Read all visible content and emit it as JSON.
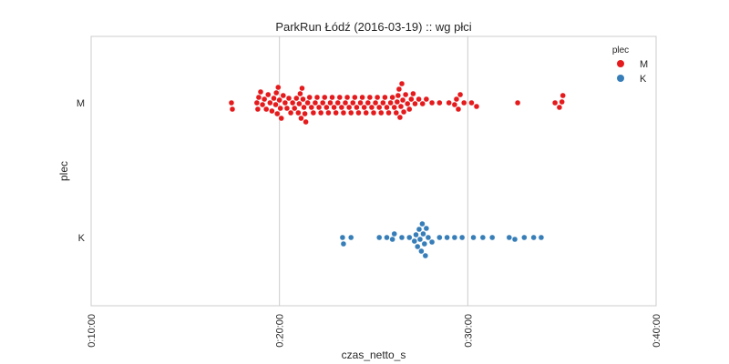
{
  "chart_data": {
    "type": "scatter",
    "subtype": "swarm",
    "title": "ParkRun Łódź (2016-03-19) :: wg płci",
    "xlabel": "czas_netto_s",
    "ylabel": "plec",
    "x_unit": "seconds",
    "xlim": [
      600,
      2400
    ],
    "x_ticks": [
      600,
      1200,
      1800,
      2400
    ],
    "x_tick_labels": [
      "0:10:00",
      "0:20:00",
      "0:30:00",
      "0:40:00"
    ],
    "categories": [
      "M",
      "K"
    ],
    "grid": true,
    "legend": {
      "title": "plec",
      "position": "top-right"
    },
    "series": [
      {
        "name": "M",
        "color": "#e41a1c",
        "values": [
          1047,
          1050,
          1128,
          1131,
          1134,
          1140,
          1146,
          1152,
          1158,
          1164,
          1170,
          1176,
          1182,
          1188,
          1190,
          1193,
          1196,
          1200,
          1203,
          1206,
          1212,
          1218,
          1224,
          1230,
          1236,
          1242,
          1248,
          1254,
          1260,
          1263,
          1266,
          1269,
          1272,
          1275,
          1278,
          1281,
          1284,
          1290,
          1296,
          1302,
          1308,
          1314,
          1320,
          1326,
          1332,
          1338,
          1344,
          1350,
          1356,
          1362,
          1368,
          1374,
          1380,
          1386,
          1392,
          1398,
          1404,
          1410,
          1416,
          1422,
          1428,
          1434,
          1440,
          1446,
          1452,
          1458,
          1464,
          1470,
          1476,
          1482,
          1488,
          1494,
          1500,
          1506,
          1512,
          1518,
          1524,
          1530,
          1536,
          1542,
          1548,
          1554,
          1560,
          1566,
          1572,
          1575,
          1578,
          1581,
          1584,
          1587,
          1590,
          1593,
          1596,
          1602,
          1608,
          1614,
          1620,
          1626,
          1632,
          1644,
          1656,
          1668,
          1686,
          1710,
          1740,
          1758,
          1764,
          1770,
          1776,
          1788,
          1812,
          1828,
          1959,
          2078,
          2092,
          2100,
          2103
        ]
      },
      {
        "name": "K",
        "color": "#377eb8",
        "values": [
          1401,
          1404,
          1428,
          1518,
          1542,
          1560,
          1566,
          1590,
          1614,
          1630,
          1635,
          1640,
          1645,
          1648,
          1652,
          1655,
          1658,
          1662,
          1665,
          1668,
          1674,
          1686,
          1710,
          1734,
          1758,
          1782,
          1818,
          1848,
          1878,
          1932,
          1950,
          1980,
          2010,
          2034
        ]
      }
    ]
  }
}
